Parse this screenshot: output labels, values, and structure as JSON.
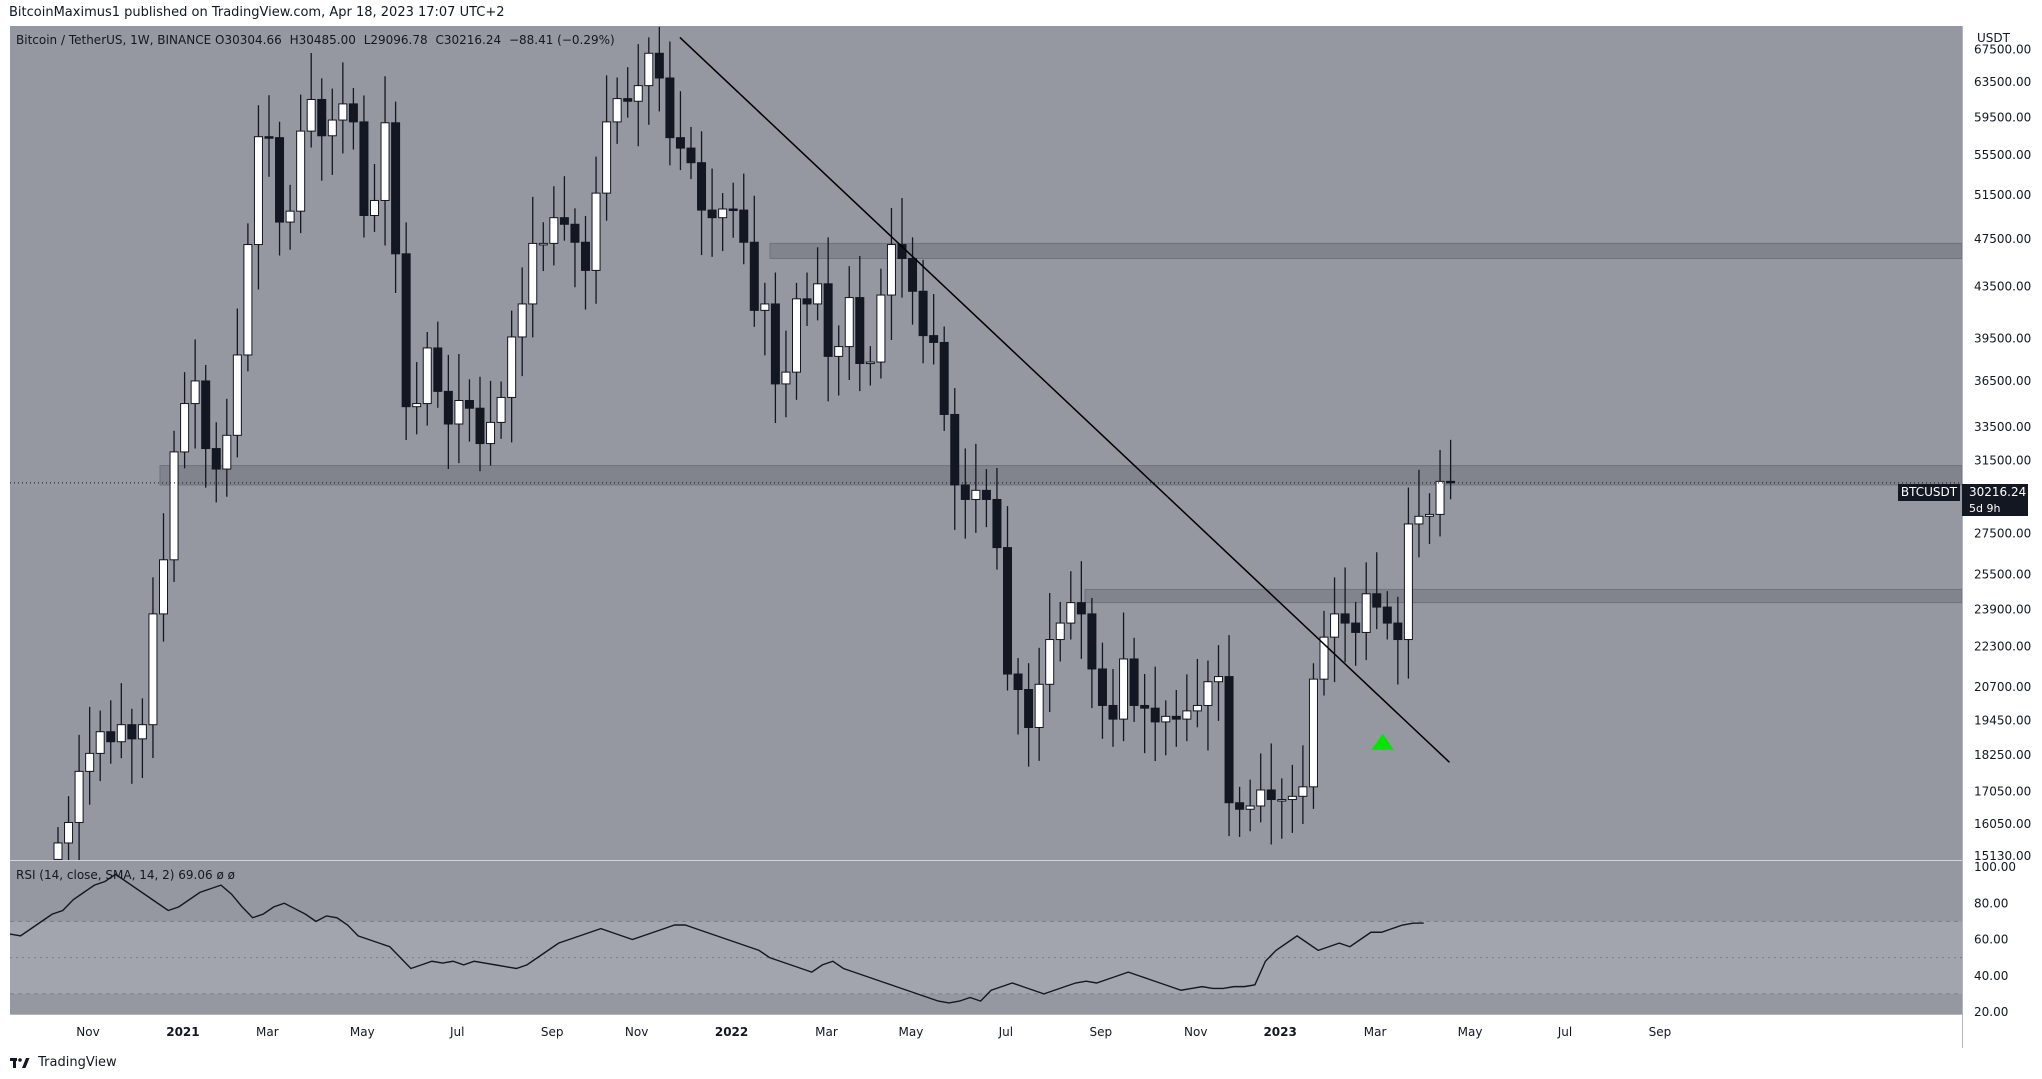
{
  "header": {
    "publisher_text": "BitcoinMaximus1 published on TradingView.com, Apr 18, 2023 17:07 UTC+2"
  },
  "legend": {
    "symbol": "Bitcoin / TetherUS, 1W, BINANCE",
    "o_label": "O",
    "o_value": "30304.66",
    "h_label": "H",
    "h_value": "30485.00",
    "l_label": "L",
    "l_value": "29096.78",
    "c_label": "C",
    "c_value": "30216.24",
    "change": "−88.41 (−0.29%)"
  },
  "rsi_legend": {
    "label": "RSI (14, close, SMA, 14, 2)",
    "value": "69.06",
    "extra1": "ø",
    "extra2": "ø"
  },
  "price_axis": {
    "currency": "USDT",
    "current_price": "30216.24",
    "timer": "5d 9h",
    "symbol_tag": "BTCUSDT"
  },
  "footer": {
    "brand": "TradingView"
  },
  "colors": {
    "background": "#9598a1",
    "bull_candle": "#ffffff",
    "bear_candle": "#131722",
    "zone": "#7b7e87",
    "trendline": "#000000",
    "marker": "#00e600"
  },
  "chart_data": [
    {
      "type": "candlestick",
      "title": "Bitcoin / TetherUS, 1W, BINANCE",
      "y_scale": "log",
      "ylim": [
        15130,
        71000
      ],
      "y_ticks": [
        67500,
        63500,
        59500,
        55500,
        51500,
        47500,
        43500,
        39500,
        36500,
        33500,
        31500,
        27500,
        25500,
        23900,
        22300,
        20700,
        19450,
        18250,
        17050,
        16050,
        15130
      ],
      "y_tick_labels": [
        "67500.00",
        "63500.00",
        "59500.00",
        "55500.00",
        "51500.00",
        "47500.00",
        "43500.00",
        "39500.00",
        "36500.00",
        "33500.00",
        "31500.00",
        "27500.00",
        "25500.00",
        "23900.00",
        "22300.00",
        "20700.00",
        "19450.00",
        "18250.00",
        "17050.00",
        "16050.00",
        "15130.00"
      ],
      "x_tick_labels": [
        "Nov",
        "2021",
        "Mar",
        "May",
        "Jul",
        "Sep",
        "Nov",
        "2022",
        "Mar",
        "May",
        "Jul",
        "Sep",
        "Nov",
        "2023",
        "Mar",
        "May",
        "Jul",
        "Sep"
      ],
      "x_tick_weeks": [
        0,
        9,
        17,
        26,
        35,
        44,
        52,
        61,
        70,
        78,
        87,
        96,
        105,
        113,
        122,
        131,
        140,
        149
      ],
      "weeks_per_label_note": "",
      "candles_closes": [
        15500,
        16100,
        17700,
        18300,
        19050,
        18700,
        19300,
        18800,
        19300,
        23700,
        26200,
        32000,
        35000,
        36500,
        32200,
        31000,
        33000,
        38300,
        47000,
        57400,
        57300,
        49000,
        50000,
        58000,
        61500,
        57500,
        59200,
        61000,
        59000,
        49600,
        51000,
        58900,
        46200,
        34800,
        35000,
        38800,
        35800,
        33700,
        35200,
        34700,
        32500,
        33800,
        35400,
        39600,
        42100,
        47100,
        47100,
        49400,
        48800,
        47200,
        44800,
        51700,
        59000,
        61600,
        61300,
        63100,
        67000,
        64000,
        57300,
        56200,
        54700,
        50100,
        49400,
        50200,
        50100,
        47200,
        41600,
        42100,
        36300,
        37100,
        42500,
        42100,
        43700,
        38200,
        38900,
        42600,
        37700,
        37800,
        42800,
        47000,
        45800,
        43100,
        39700,
        39200,
        34300,
        30100,
        29300,
        29800,
        29300,
        26800,
        21200,
        20600,
        19200,
        20800,
        22600,
        23300,
        24200,
        23700,
        21400,
        20000,
        19500,
        21800,
        20000,
        19900,
        19400,
        19600,
        19500,
        19800,
        20000,
        20900,
        21100,
        16700,
        16500,
        16600,
        17100,
        16800,
        16800,
        16900,
        17200,
        21000,
        22700,
        23700,
        23300,
        22900,
        24600,
        24000,
        23300,
        22600,
        28000,
        28400,
        28500,
        30300,
        30216
      ],
      "current_price": 30216.24,
      "horizontal_zones": [
        {
          "from": 30100,
          "to": 31200
        },
        {
          "from": 24200,
          "to": 24800
        },
        {
          "from": 45800,
          "to": 47100
        }
      ],
      "trendline": {
        "start": 69000,
        "end": 18000
      },
      "marker": {
        "type": "triangle-up",
        "price": 18700
      }
    },
    {
      "type": "line",
      "title": "RSI (14, close, SMA, 14, 2)",
      "ylim": [
        20,
        100
      ],
      "y_ticks": [
        100,
        80,
        60,
        40,
        20
      ],
      "y_tick_labels": [
        "100.00",
        "80.00",
        "60.00",
        "40.00",
        "20.00"
      ],
      "bands": {
        "upper": 70,
        "middle": 50,
        "lower": 30
      },
      "values": [
        63,
        62,
        66,
        70,
        74,
        76,
        82,
        86,
        90,
        92,
        96,
        92,
        88,
        84,
        80,
        76,
        78,
        82,
        86,
        88,
        90,
        85,
        78,
        72,
        74,
        78,
        80,
        77,
        74,
        70,
        73,
        72,
        68,
        62,
        60,
        58,
        56,
        50,
        44,
        46,
        48,
        47,
        48,
        46,
        48,
        47,
        46,
        45,
        44,
        46,
        50,
        54,
        58,
        60,
        62,
        64,
        66,
        64,
        62,
        60,
        62,
        64,
        66,
        68,
        68,
        66,
        64,
        62,
        60,
        58,
        56,
        54,
        50,
        48,
        46,
        44,
        42,
        46,
        48,
        44,
        42,
        40,
        38,
        36,
        34,
        32,
        30,
        28,
        26,
        25,
        26,
        28,
        26,
        32,
        34,
        36,
        34,
        32,
        30,
        32,
        34,
        36,
        37,
        36,
        38,
        40,
        42,
        40,
        38,
        36,
        34,
        32,
        33,
        34,
        33,
        33,
        34,
        34,
        35,
        48,
        54,
        58,
        62,
        58,
        54,
        56,
        58,
        56,
        60,
        64,
        64,
        66,
        68,
        69,
        69.06
      ]
    }
  ]
}
